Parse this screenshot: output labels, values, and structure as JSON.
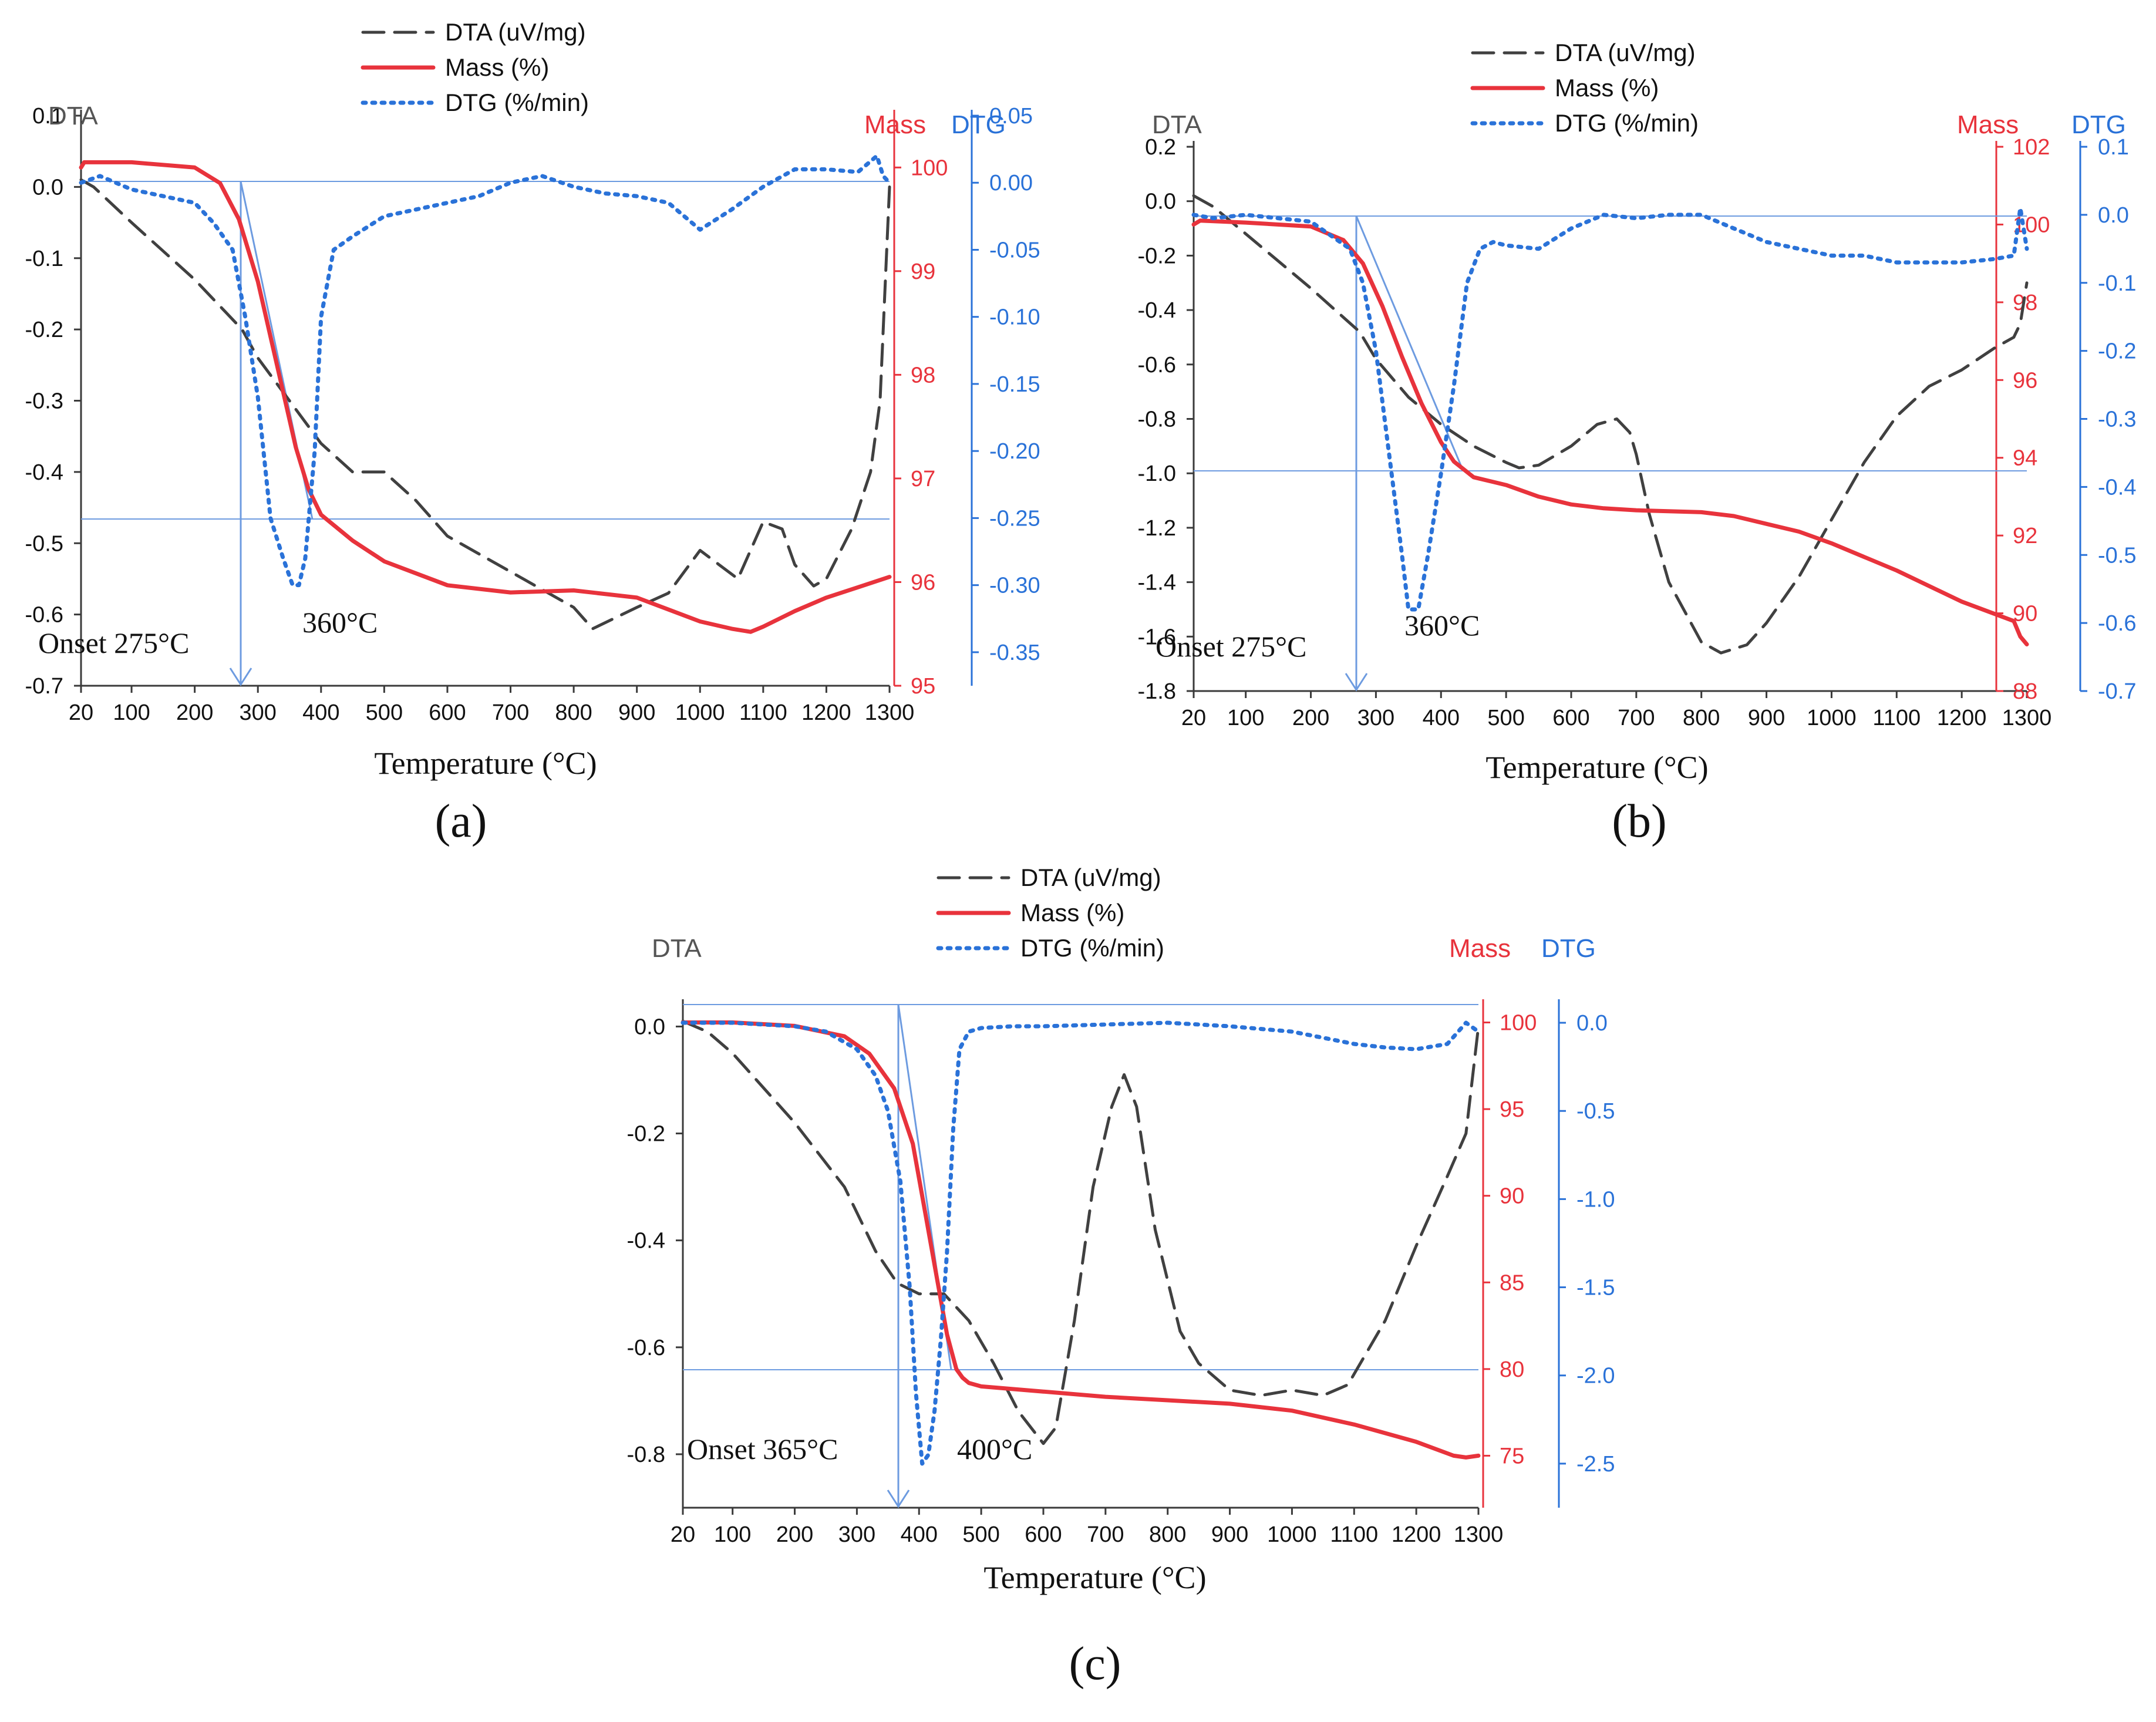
{
  "colors": {
    "dta": "#404040",
    "mass": "#e8333c",
    "dtg": "#2a72d8",
    "guide": "#6d9be0",
    "axis_black": "#3a3a3a",
    "text": "#111111"
  },
  "chart_data": [
    {
      "type": "line",
      "panel_label": "(a)",
      "xlabel": "Temperature (°C)",
      "x_ticks": [
        "20",
        "100",
        "200",
        "300",
        "400",
        "500",
        "600",
        "700",
        "800",
        "900",
        "1000",
        "1100",
        "1200",
        "1300"
      ],
      "xlim": [
        20,
        1300
      ],
      "axes": {
        "left": {
          "title": "DTA",
          "ylim": [
            -0.7,
            0.1
          ],
          "ticks": [
            "0.1",
            "0.0",
            "-0.1",
            "-0.2",
            "-0.3",
            "-0.4",
            "-0.5",
            "-0.6",
            "-0.7"
          ]
        },
        "mass": {
          "title": "Mass",
          "ylim": [
            95,
            100.5
          ],
          "ticks": [
            "100",
            "99",
            "98",
            "97",
            "96",
            "95"
          ]
        },
        "dtg": {
          "title": "DTG",
          "ylim": [
            -0.375,
            0.05
          ],
          "ticks": [
            "0.05",
            "0.00",
            "-0.05",
            "-0.10",
            "-0.15",
            "-0.20",
            "-0.25",
            "-0.30",
            "-0.35"
          ]
        }
      },
      "legend": [
        "DTA (uV/mg)",
        "Mass (%)",
        "DTG (%/min)"
      ],
      "annotations": {
        "onset": "Onset 275°C",
        "peak": "360°C"
      },
      "series": [
        {
          "name": "DTA (uV/mg)",
          "axis": "left",
          "style": "dashed",
          "x": [
            20,
            40,
            100,
            200,
            275,
            300,
            350,
            400,
            450,
            500,
            550,
            600,
            700,
            800,
            830,
            900,
            950,
            1000,
            1030,
            1060,
            1100,
            1130,
            1150,
            1180,
            1200,
            1240,
            1270,
            1285,
            1295,
            1300
          ],
          "y": [
            0.01,
            0.0,
            -0.05,
            -0.13,
            -0.2,
            -0.24,
            -0.3,
            -0.36,
            -0.4,
            -0.4,
            -0.44,
            -0.49,
            -0.54,
            -0.59,
            -0.62,
            -0.59,
            -0.57,
            -0.51,
            -0.53,
            -0.55,
            -0.47,
            -0.48,
            -0.53,
            -0.56,
            -0.55,
            -0.48,
            -0.4,
            -0.3,
            -0.1,
            0.0
          ]
        },
        {
          "name": "Mass (%)",
          "axis": "mass",
          "style": "solid",
          "x": [
            20,
            25,
            100,
            200,
            240,
            270,
            300,
            330,
            360,
            380,
            400,
            450,
            500,
            600,
            700,
            800,
            900,
            1000,
            1050,
            1080,
            1100,
            1150,
            1200,
            1250,
            1300
          ],
          "y": [
            100.0,
            100.05,
            100.05,
            100.0,
            99.85,
            99.5,
            98.9,
            98.1,
            97.3,
            96.9,
            96.65,
            96.4,
            96.2,
            95.97,
            95.9,
            95.92,
            95.85,
            95.62,
            95.55,
            95.52,
            95.57,
            95.72,
            95.85,
            95.95,
            96.05
          ]
        },
        {
          "name": "DTG (%/min)",
          "axis": "dtg",
          "style": "dotted",
          "x": [
            20,
            50,
            100,
            150,
            200,
            230,
            260,
            280,
            300,
            320,
            340,
            355,
            365,
            375,
            390,
            400,
            420,
            450,
            500,
            550,
            600,
            650,
            700,
            750,
            800,
            850,
            900,
            950,
            1000,
            1050,
            1100,
            1150,
            1200,
            1250,
            1280,
            1290,
            1300
          ],
          "y": [
            0.0,
            0.005,
            -0.005,
            -0.01,
            -0.015,
            -0.03,
            -0.05,
            -0.1,
            -0.16,
            -0.25,
            -0.28,
            -0.3,
            -0.3,
            -0.28,
            -0.2,
            -0.1,
            -0.05,
            -0.04,
            -0.025,
            -0.02,
            -0.015,
            -0.01,
            0.0,
            0.005,
            -0.003,
            -0.008,
            -0.01,
            -0.015,
            -0.035,
            -0.02,
            -0.003,
            0.01,
            0.01,
            0.008,
            0.02,
            0.005,
            0.0
          ]
        }
      ]
    },
    {
      "type": "line",
      "panel_label": "(b)",
      "xlabel": "Temperature (°C)",
      "x_ticks": [
        "20",
        "100",
        "200",
        "300",
        "400",
        "500",
        "600",
        "700",
        "800",
        "900",
        "1000",
        "1100",
        "1200",
        "1300"
      ],
      "xlim": [
        20,
        1300
      ],
      "axes": {
        "left": {
          "title": "DTA",
          "ylim": [
            -1.8,
            0.2
          ],
          "ticks": [
            "0.2",
            "0.0",
            "-0.2",
            "-0.4",
            "-0.6",
            "-0.8",
            "-1.0",
            "-1.2",
            "-1.4",
            "-1.6",
            "-1.8"
          ]
        },
        "mass": {
          "title": "Mass",
          "ylim": [
            88,
            102
          ],
          "ticks": [
            "102",
            "100",
            "98",
            "96",
            "94",
            "92",
            "90",
            "88"
          ]
        },
        "dtg": {
          "title": "DTG",
          "ylim": [
            -0.7,
            0.1
          ],
          "ticks": [
            "0.1",
            "0.0",
            "-0.1",
            "-0.2",
            "-0.3",
            "-0.4",
            "-0.5",
            "-0.6",
            "-0.7"
          ]
        }
      },
      "legend": [
        "DTA (uV/mg)",
        "Mass (%)",
        "DTG (%/min)"
      ],
      "annotations": {
        "onset": "Onset 275°C",
        "peak": "360°C"
      },
      "series": [
        {
          "name": "DTA (uV/mg)",
          "axis": "left",
          "style": "dashed",
          "x": [
            20,
            50,
            100,
            200,
            275,
            300,
            350,
            400,
            450,
            500,
            520,
            550,
            600,
            640,
            670,
            690,
            700,
            720,
            750,
            800,
            830,
            870,
            900,
            950,
            1000,
            1050,
            1100,
            1150,
            1200,
            1250,
            1280,
            1290,
            1300
          ],
          "y": [
            0.02,
            -0.02,
            -0.12,
            -0.32,
            -0.48,
            -0.58,
            -0.72,
            -0.82,
            -0.9,
            -0.96,
            -0.98,
            -0.97,
            -0.9,
            -0.82,
            -0.8,
            -0.85,
            -0.93,
            -1.15,
            -1.4,
            -1.62,
            -1.66,
            -1.63,
            -1.55,
            -1.38,
            -1.17,
            -0.96,
            -0.79,
            -0.68,
            -0.62,
            -0.54,
            -0.5,
            -0.45,
            -0.3
          ]
        },
        {
          "name": "Mass (%)",
          "axis": "mass",
          "style": "solid",
          "x": [
            20,
            30,
            100,
            200,
            250,
            280,
            310,
            340,
            370,
            400,
            420,
            450,
            500,
            550,
            600,
            650,
            700,
            800,
            850,
            900,
            950,
            1000,
            1100,
            1200,
            1280,
            1290,
            1300
          ],
          "y": [
            100.0,
            100.1,
            100.05,
            99.95,
            99.6,
            99.0,
            97.9,
            96.6,
            95.4,
            94.4,
            93.9,
            93.5,
            93.3,
            93.0,
            92.8,
            92.7,
            92.65,
            92.6,
            92.5,
            92.3,
            92.1,
            91.8,
            91.1,
            90.3,
            89.8,
            89.4,
            89.2
          ]
        },
        {
          "name": "DTG (%/min)",
          "axis": "dtg",
          "style": "dotted",
          "x": [
            20,
            50,
            100,
            150,
            200,
            230,
            260,
            280,
            300,
            320,
            340,
            350,
            365,
            380,
            400,
            420,
            440,
            460,
            480,
            500,
            550,
            600,
            650,
            700,
            750,
            800,
            850,
            900,
            950,
            1000,
            1050,
            1100,
            1150,
            1200,
            1250,
            1280,
            1290,
            1300
          ],
          "y": [
            0.0,
            -0.005,
            0.0,
            -0.005,
            -0.01,
            -0.03,
            -0.05,
            -0.1,
            -0.2,
            -0.35,
            -0.5,
            -0.58,
            -0.58,
            -0.5,
            -0.38,
            -0.25,
            -0.1,
            -0.05,
            -0.04,
            -0.045,
            -0.05,
            -0.02,
            0.0,
            -0.005,
            0.0,
            0.0,
            -0.02,
            -0.04,
            -0.05,
            -0.06,
            -0.06,
            -0.07,
            -0.07,
            -0.07,
            -0.065,
            -0.06,
            0.01,
            -0.05
          ]
        }
      ]
    },
    {
      "type": "line",
      "panel_label": "(c)",
      "xlabel": "Temperature (°C)",
      "x_ticks": [
        "20",
        "100",
        "200",
        "300",
        "400",
        "500",
        "600",
        "700",
        "800",
        "900",
        "1000",
        "1100",
        "1200",
        "1300"
      ],
      "xlim": [
        20,
        1300
      ],
      "axes": {
        "left": {
          "title": "DTA",
          "ylim": [
            -0.9,
            0.04
          ],
          "ticks": [
            "0.0",
            "-0.2",
            "-0.4",
            "-0.6",
            "-0.8"
          ]
        },
        "mass": {
          "title": "Mass",
          "ylim": [
            72,
            101
          ],
          "ticks": [
            "100",
            "95",
            "90",
            "85",
            "80",
            "75"
          ]
        },
        "dtg": {
          "title": "DTG",
          "ylim": [
            -2.75,
            0.1
          ],
          "ticks": [
            "0.0",
            "-0.5",
            "-1.0",
            "-1.5",
            "-2.0",
            "-2.5"
          ]
        }
      },
      "legend": [
        "DTA (uV/mg)",
        "Mass (%)",
        "DTG (%/min)"
      ],
      "annotations": {
        "onset": "Onset 365°C",
        "peak": "400°C"
      },
      "series": [
        {
          "name": "DTA (uV/mg)",
          "axis": "left",
          "style": "dashed",
          "x": [
            20,
            60,
            100,
            200,
            280,
            330,
            365,
            400,
            440,
            480,
            520,
            560,
            600,
            620,
            650,
            680,
            710,
            730,
            750,
            780,
            820,
            850,
            900,
            950,
            1000,
            1050,
            1090,
            1100,
            1150,
            1200,
            1250,
            1280,
            1300
          ],
          "y": [
            0.01,
            -0.01,
            -0.05,
            -0.18,
            -0.3,
            -0.42,
            -0.48,
            -0.5,
            -0.5,
            -0.55,
            -0.63,
            -0.72,
            -0.78,
            -0.75,
            -0.55,
            -0.3,
            -0.15,
            -0.09,
            -0.15,
            -0.38,
            -0.57,
            -0.63,
            -0.68,
            -0.69,
            -0.68,
            -0.69,
            -0.67,
            -0.65,
            -0.55,
            -0.41,
            -0.28,
            -0.2,
            0.0
          ]
        },
        {
          "name": "Mass (%)",
          "axis": "mass",
          "style": "solid",
          "x": [
            20,
            100,
            200,
            280,
            320,
            360,
            390,
            410,
            430,
            445,
            460,
            470,
            480,
            500,
            600,
            700,
            800,
            900,
            1000,
            1100,
            1200,
            1260,
            1280,
            1300
          ],
          "y": [
            100.0,
            100.0,
            99.8,
            99.2,
            98.2,
            96.2,
            93.0,
            89.0,
            85.0,
            82.0,
            80.0,
            79.5,
            79.2,
            79.0,
            78.7,
            78.4,
            78.2,
            78.0,
            77.6,
            76.8,
            75.8,
            75.0,
            74.9,
            75.0
          ]
        },
        {
          "name": "DTG (%/min)",
          "axis": "dtg",
          "style": "dotted",
          "x": [
            20,
            100,
            200,
            250,
            300,
            330,
            350,
            370,
            385,
            395,
            405,
            415,
            425,
            435,
            445,
            455,
            465,
            480,
            500,
            550,
            600,
            700,
            800,
            900,
            1000,
            1100,
            1150,
            1200,
            1250,
            1280,
            1300
          ],
          "y": [
            0.0,
            0.0,
            -0.02,
            -0.05,
            -0.15,
            -0.3,
            -0.5,
            -0.9,
            -1.5,
            -2.1,
            -2.5,
            -2.45,
            -2.2,
            -1.8,
            -1.3,
            -0.6,
            -0.15,
            -0.05,
            -0.03,
            -0.02,
            -0.02,
            -0.01,
            0.0,
            -0.02,
            -0.05,
            -0.12,
            -0.14,
            -0.15,
            -0.12,
            0.0,
            -0.05
          ]
        }
      ]
    }
  ]
}
